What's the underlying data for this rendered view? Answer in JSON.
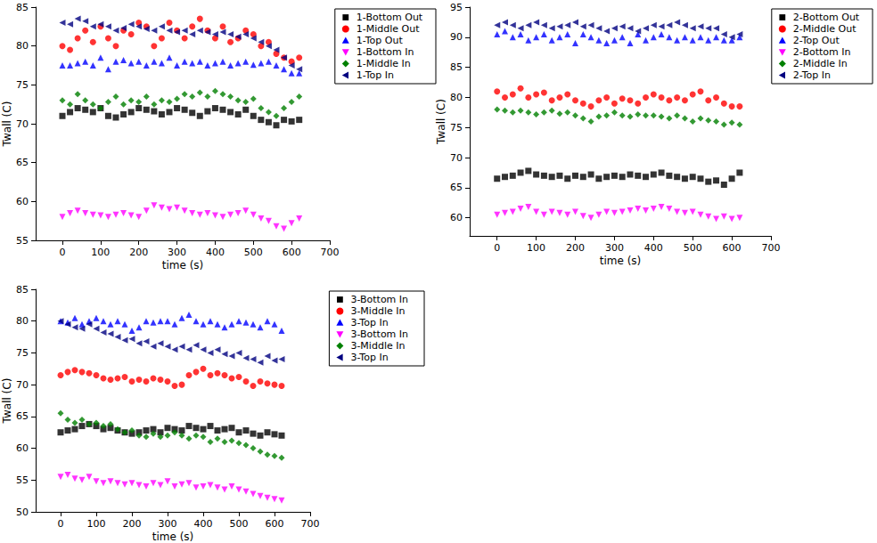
{
  "chart_data": [
    {
      "type": "scatter",
      "x_label": "time (s)",
      "y_label": "Twall (C)",
      "xlim": [
        -70,
        700
      ],
      "xticks": [
        0,
        100,
        200,
        300,
        400,
        500,
        600,
        700
      ],
      "ylim": [
        55,
        85
      ],
      "yticks": [
        55,
        60,
        65,
        70,
        75,
        80,
        85
      ],
      "grid": false,
      "legend": "upper right",
      "x": [
        0,
        20,
        40,
        60,
        80,
        100,
        120,
        140,
        160,
        180,
        200,
        220,
        240,
        260,
        280,
        300,
        320,
        340,
        360,
        380,
        400,
        420,
        440,
        460,
        480,
        500,
        520,
        540,
        560,
        580,
        600,
        620
      ],
      "series": [
        {
          "name": "1-Bottom Out",
          "color": "#000000",
          "marker": "square",
          "values": [
            71,
            71.5,
            72,
            71.8,
            71.5,
            72,
            71,
            70.8,
            71.2,
            71.5,
            72,
            71.8,
            71.6,
            71.2,
            71.5,
            72,
            71.8,
            71.4,
            71,
            71.6,
            72,
            71.8,
            71.5,
            71.2,
            71.8,
            71,
            70.5,
            70.2,
            69.8,
            70.5,
            70.3,
            70.5
          ]
        },
        {
          "name": "1-Middle Out",
          "color": "#ff0000",
          "marker": "circle",
          "values": [
            80,
            79.5,
            81,
            82,
            80.5,
            82.5,
            81,
            80,
            82,
            81.5,
            83,
            82.5,
            80,
            81,
            83,
            82,
            81,
            82.5,
            83.5,
            82,
            81,
            82.5,
            80.5,
            81,
            82,
            81.5,
            80,
            80.5,
            79,
            78.5,
            78,
            78.5
          ]
        },
        {
          "name": "1-Top Out",
          "color": "#0000ff",
          "marker": "triangle-up",
          "values": [
            77.5,
            77.5,
            77.8,
            78,
            77.5,
            78.5,
            77,
            78,
            78.2,
            77.8,
            78,
            77.5,
            78,
            77.8,
            78.5,
            77.5,
            78,
            77.8,
            78,
            77.5,
            77.8,
            78,
            77.5,
            77.8,
            78,
            77.6,
            77.8,
            78,
            77.5,
            77,
            76.5,
            76.5
          ]
        },
        {
          "name": "1-Bottom In",
          "color": "#ff00ff",
          "marker": "triangle-down",
          "values": [
            58,
            58.5,
            58.8,
            58.5,
            58.3,
            58.2,
            58,
            58.3,
            58.5,
            58.2,
            58,
            58.8,
            59.5,
            59.2,
            59,
            59.2,
            58.8,
            58.5,
            58.3,
            58.5,
            58.2,
            58,
            58.3,
            58.5,
            58.8,
            58.3,
            57.8,
            57.5,
            56.8,
            56.5,
            57.2,
            57.8
          ]
        },
        {
          "name": "1-Middle In",
          "color": "#008000",
          "marker": "diamond",
          "values": [
            73,
            72.5,
            73.8,
            73,
            72.5,
            72,
            72.8,
            73.5,
            72.5,
            73,
            72.8,
            73.5,
            72.5,
            73,
            72.8,
            73.2,
            73.8,
            73.5,
            74,
            73.5,
            74.2,
            73.8,
            73.5,
            73,
            72.8,
            73.2,
            72,
            71.5,
            71,
            72,
            72.8,
            73.5
          ]
        },
        {
          "name": "1-Top In",
          "color": "#000080",
          "marker": "triangle-left",
          "values": [
            83,
            82.8,
            83.5,
            83.2,
            82.5,
            82.8,
            82.5,
            82,
            82.3,
            82.8,
            82.5,
            82.2,
            82,
            82.5,
            82,
            81.8,
            82,
            81.5,
            82,
            81.8,
            81.5,
            81.8,
            81.5,
            81.2,
            81.5,
            81,
            80.5,
            80,
            79.5,
            78.5,
            77.5,
            77
          ]
        }
      ]
    },
    {
      "type": "scatter",
      "x_label": "time (s)",
      "y_label": "Twall (C)",
      "xlim": [
        -70,
        700
      ],
      "xticks": [
        0,
        100,
        200,
        300,
        400,
        500,
        600,
        700
      ],
      "ylim": [
        57,
        95
      ],
      "yticks": [
        60,
        65,
        70,
        75,
        80,
        85,
        90,
        95
      ],
      "grid": false,
      "legend": "upper right",
      "x": [
        0,
        20,
        40,
        60,
        80,
        100,
        120,
        140,
        160,
        180,
        200,
        220,
        240,
        260,
        280,
        300,
        320,
        340,
        360,
        380,
        400,
        420,
        440,
        460,
        480,
        500,
        520,
        540,
        560,
        580,
        600,
        620
      ],
      "series": [
        {
          "name": "2-Bottom Out",
          "color": "#000000",
          "marker": "square",
          "values": [
            66.5,
            66.8,
            67,
            67.5,
            67.8,
            67.2,
            67,
            66.8,
            67,
            66.5,
            67,
            66.8,
            67.2,
            66.5,
            66.8,
            67,
            66.8,
            67.2,
            67,
            66.8,
            67.2,
            67.5,
            67,
            66.8,
            66.5,
            66.8,
            66.5,
            66,
            66.2,
            65.5,
            66.5,
            67.5
          ]
        },
        {
          "name": "2-Middle Out",
          "color": "#ff0000",
          "marker": "circle",
          "values": [
            81,
            80,
            80.5,
            81.5,
            80,
            80.5,
            80.8,
            79.5,
            80,
            80.5,
            79.5,
            79,
            78.5,
            79.5,
            80,
            79,
            79.8,
            79.5,
            79,
            80,
            80.5,
            80,
            79.5,
            80,
            79.5,
            80.5,
            81,
            79.5,
            80,
            79,
            78.5,
            78.5
          ]
        },
        {
          "name": "2-Top Out",
          "color": "#0000ff",
          "marker": "triangle-up",
          "values": [
            90.5,
            91,
            90,
            90.5,
            89.5,
            90,
            90.5,
            89.5,
            90,
            90.5,
            89,
            90.5,
            90,
            89.5,
            89,
            89.5,
            90,
            89,
            90.5,
            89.5,
            90,
            90.5,
            90,
            89.5,
            90,
            89.5,
            90,
            89.5,
            90,
            89.5,
            89.5,
            90
          ]
        },
        {
          "name": "2-Bottom In",
          "color": "#ff00ff",
          "marker": "triangle-down",
          "values": [
            60.5,
            60.8,
            61,
            61.5,
            61.8,
            61,
            60.5,
            61,
            60.8,
            60.5,
            61,
            60.3,
            60,
            60.5,
            61,
            60.8,
            61,
            61.2,
            61.5,
            61.2,
            61.5,
            61.8,
            61.5,
            61,
            60.8,
            61,
            60.5,
            60.2,
            59.8,
            60.2,
            59.8,
            60
          ]
        },
        {
          "name": "2-Middle In",
          "color": "#008000",
          "marker": "diamond",
          "values": [
            78,
            77.8,
            77.5,
            77.8,
            77.5,
            77.2,
            77.5,
            77.8,
            77.3,
            77.5,
            77,
            76.5,
            76,
            76.8,
            77,
            77.5,
            77,
            76.8,
            77.2,
            77,
            77,
            76.8,
            76.5,
            77,
            76.5,
            76,
            76.5,
            76.2,
            76,
            75.5,
            75.8,
            75.5
          ]
        },
        {
          "name": "2-Top In",
          "color": "#000080",
          "marker": "triangle-left",
          "values": [
            92,
            92.5,
            92,
            91.5,
            92,
            92.5,
            92,
            91.5,
            91.8,
            92,
            92.5,
            91.8,
            92,
            91.5,
            91,
            91.5,
            91.8,
            91.5,
            91,
            91.5,
            92,
            91.8,
            92,
            92.5,
            92,
            91.5,
            91.8,
            91.5,
            91.5,
            90.5,
            90,
            90.5
          ]
        }
      ]
    },
    {
      "type": "scatter",
      "x_label": "time (s)",
      "y_label": "Twall (C)",
      "xlim": [
        -70,
        700
      ],
      "xticks": [
        0,
        100,
        200,
        300,
        400,
        500,
        600,
        700
      ],
      "ylim": [
        50,
        85
      ],
      "yticks": [
        50,
        55,
        60,
        65,
        70,
        75,
        80,
        85
      ],
      "grid": false,
      "legend": "upper right",
      "x": [
        0,
        20,
        40,
        60,
        80,
        100,
        120,
        140,
        160,
        180,
        200,
        220,
        240,
        260,
        280,
        300,
        320,
        340,
        360,
        380,
        400,
        420,
        440,
        460,
        480,
        500,
        520,
        540,
        560,
        580,
        600,
        620
      ],
      "series": [
        {
          "name": "3-Bottom In",
          "color": "#000000",
          "marker": "square",
          "values": [
            62.5,
            62.8,
            63,
            63.5,
            63.8,
            63.5,
            63,
            63.2,
            62.8,
            62.5,
            62.3,
            62.5,
            62.8,
            63,
            62.5,
            63.2,
            63,
            62.8,
            63.5,
            63.2,
            63,
            63.5,
            62.8,
            63,
            63.2,
            62.5,
            62.8,
            62.3,
            62,
            62.5,
            62.2,
            62
          ]
        },
        {
          "name": "3-Middle In",
          "color": "#ff0000",
          "marker": "circle",
          "values": [
            71.5,
            72,
            72.3,
            72,
            71.8,
            71.5,
            71,
            70.8,
            71,
            71.2,
            70.5,
            70.8,
            70.5,
            71,
            70.8,
            70.5,
            69.8,
            70,
            71.5,
            72,
            72.5,
            71.5,
            71.8,
            71.5,
            71,
            71.2,
            70.5,
            69.8,
            70.5,
            70.2,
            70,
            69.8
          ]
        },
        {
          "name": "3-Top In",
          "color": "#0000ff",
          "marker": "triangle-up",
          "values": [
            80,
            79.8,
            80.5,
            79.5,
            80,
            80.5,
            80,
            79.5,
            80,
            79.5,
            78.5,
            79,
            80,
            79.8,
            80,
            80,
            79.5,
            80.5,
            81,
            80,
            79.5,
            80,
            79.5,
            79,
            79.5,
            80,
            79.8,
            79.5,
            79,
            80,
            79.5,
            78.5
          ]
        },
        {
          "name": "3-Bottom In",
          "color": "#ff00ff",
          "marker": "triangle-down",
          "values": [
            55.5,
            55.8,
            55.2,
            55,
            55.5,
            54.8,
            54.5,
            54.8,
            54.5,
            54.3,
            54.5,
            54.2,
            54,
            54.5,
            54.2,
            54.8,
            54,
            54.3,
            54.5,
            53.8,
            54,
            54.2,
            53.8,
            53.5,
            54,
            53.5,
            53.2,
            52.8,
            52.5,
            52.2,
            52,
            51.8
          ]
        },
        {
          "name": "3-Middle In",
          "color": "#008000",
          "marker": "diamond",
          "values": [
            65.5,
            64.5,
            64,
            64.5,
            63.8,
            64,
            63.5,
            63.8,
            63,
            62.5,
            62.8,
            62,
            61.8,
            62.3,
            61.8,
            62,
            62.5,
            62,
            61.5,
            62,
            61.8,
            61,
            61.5,
            61,
            61.2,
            60.8,
            60.5,
            60,
            59.5,
            59,
            58.8,
            58.5
          ]
        },
        {
          "name": "3-Top In",
          "color": "#000080",
          "marker": "triangle-left",
          "values": [
            80,
            79.5,
            79,
            78.8,
            79.5,
            78.8,
            78.2,
            78,
            77.5,
            77,
            77.2,
            76.5,
            76.8,
            76,
            76.5,
            76,
            75.5,
            76,
            75.5,
            76.2,
            75.5,
            75,
            75.5,
            74.8,
            74.5,
            75,
            74.2,
            74,
            73.5,
            74.5,
            73.8,
            74
          ]
        }
      ]
    }
  ]
}
